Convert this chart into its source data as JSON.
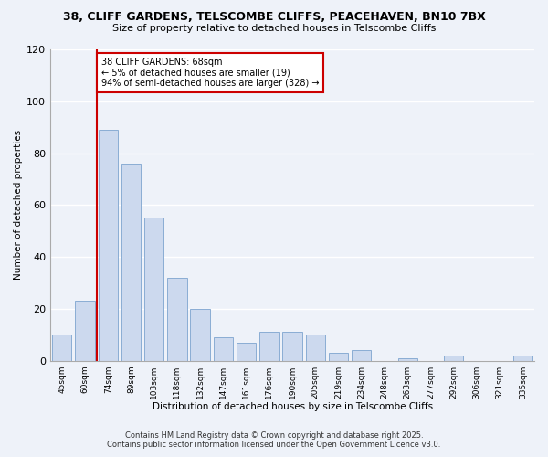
{
  "title1": "38, CLIFF GARDENS, TELSCOMBE CLIFFS, PEACEHAVEN, BN10 7BX",
  "title2": "Size of property relative to detached houses in Telscombe Cliffs",
  "xlabel": "Distribution of detached houses by size in Telscombe Cliffs",
  "ylabel": "Number of detached properties",
  "categories": [
    "45sqm",
    "60sqm",
    "74sqm",
    "89sqm",
    "103sqm",
    "118sqm",
    "132sqm",
    "147sqm",
    "161sqm",
    "176sqm",
    "190sqm",
    "205sqm",
    "219sqm",
    "234sqm",
    "248sqm",
    "263sqm",
    "277sqm",
    "292sqm",
    "306sqm",
    "321sqm",
    "335sqm"
  ],
  "values": [
    10,
    23,
    89,
    76,
    55,
    32,
    20,
    9,
    7,
    11,
    11,
    10,
    3,
    4,
    0,
    1,
    0,
    2,
    0,
    0,
    2
  ],
  "bar_color": "#ccd9ee",
  "bar_edge_color": "#8aadd4",
  "reference_line_color": "#cc0000",
  "annotation_title": "38 CLIFF GARDENS: 68sqm",
  "annotation_line1": "← 5% of detached houses are smaller (19)",
  "annotation_line2": "94% of semi-detached houses are larger (328) →",
  "ylim": [
    0,
    120
  ],
  "yticks": [
    0,
    20,
    40,
    60,
    80,
    100,
    120
  ],
  "footer1": "Contains HM Land Registry data © Crown copyright and database right 2025.",
  "footer2": "Contains public sector information licensed under the Open Government Licence v3.0.",
  "bg_color": "#eef2f9"
}
